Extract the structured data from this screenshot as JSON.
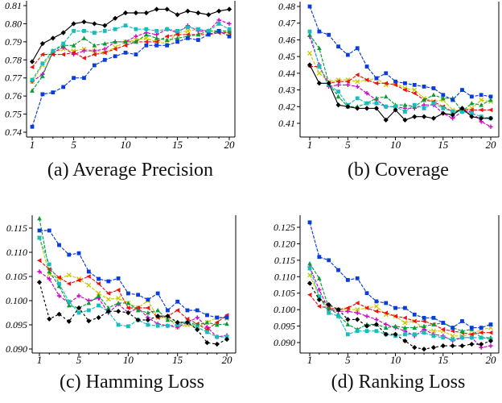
{
  "figure": {
    "background": "#ffffff",
    "axis_color": "#000000",
    "tick_label_color": "#000000"
  },
  "chart_data": [
    {
      "id": "a",
      "type": "line",
      "title": "(a) Average Precision",
      "xlabel": "",
      "ylabel": "",
      "grid": false,
      "legend": "none",
      "x": [
        1,
        2,
        3,
        4,
        5,
        6,
        7,
        8,
        9,
        10,
        11,
        12,
        13,
        14,
        15,
        16,
        17,
        18,
        19,
        20
      ],
      "xticks": [
        1,
        5,
        10,
        15,
        20
      ],
      "yticks": [
        "0.74",
        "0.75",
        "0.76",
        "0.77",
        "0.78",
        "0.79",
        "0.80",
        "0.81"
      ],
      "ylim": [
        0.74,
        0.81
      ],
      "series": [
        {
          "name": "olive",
          "color": "#c9c900",
          "marker": "x",
          "dash": "4 1.6",
          "values": [
            0.768,
            0.777,
            0.784,
            0.786,
            0.785,
            0.786,
            0.785,
            0.784,
            0.787,
            0.79,
            0.791,
            0.792,
            0.79,
            0.789,
            0.795,
            0.796,
            0.797,
            0.796,
            0.796,
            0.795
          ]
        },
        {
          "name": "magenta",
          "color": "#cf00cf",
          "marker": "plus",
          "dash": "4 1.6",
          "values": [
            0.768,
            0.772,
            0.784,
            0.787,
            0.783,
            0.785,
            0.785,
            0.786,
            0.79,
            0.79,
            0.793,
            0.795,
            0.794,
            0.797,
            0.795,
            0.799,
            0.796,
            0.796,
            0.802,
            0.8
          ]
        },
        {
          "name": "red",
          "color": "#ee1111",
          "marker": "tri-left",
          "dash": "4 1.6",
          "values": [
            0.776,
            0.783,
            0.783,
            0.783,
            0.784,
            0.781,
            0.783,
            0.784,
            0.786,
            0.788,
            0.79,
            0.79,
            0.79,
            0.793,
            0.794,
            0.794,
            0.794,
            0.794,
            0.795,
            0.795
          ]
        },
        {
          "name": "green",
          "color": "#0b9a38",
          "marker": "tri-up",
          "dash": "4 1.6",
          "values": [
            0.763,
            0.771,
            0.785,
            0.788,
            0.788,
            0.792,
            0.788,
            0.789,
            0.79,
            0.79,
            0.79,
            0.794,
            0.792,
            0.791,
            0.792,
            0.793,
            0.794,
            0.796,
            0.796,
            0.796
          ]
        },
        {
          "name": "cyan",
          "color": "#17bdbd",
          "marker": "square",
          "dash": "4 1.6",
          "values": [
            0.769,
            0.778,
            0.785,
            0.789,
            0.796,
            0.796,
            0.795,
            0.796,
            0.797,
            0.799,
            0.797,
            0.797,
            0.796,
            0.797,
            0.796,
            0.798,
            0.797,
            0.796,
            0.8,
            0.797
          ]
        },
        {
          "name": "blue",
          "color": "#0a3cd9",
          "marker": "square",
          "dash": "4 1.6",
          "values": [
            0.743,
            0.761,
            0.762,
            0.765,
            0.77,
            0.77,
            0.777,
            0.78,
            0.782,
            0.784,
            0.783,
            0.788,
            0.788,
            0.788,
            0.79,
            0.792,
            0.791,
            0.794,
            0.796,
            0.793
          ]
        },
        {
          "name": "black",
          "color": "#000000",
          "marker": "diamond",
          "dash": "",
          "values": [
            0.779,
            0.789,
            0.792,
            0.795,
            0.8,
            0.801,
            0.8,
            0.799,
            0.803,
            0.806,
            0.806,
            0.806,
            0.808,
            0.808,
            0.805,
            0.807,
            0.806,
            0.805,
            0.807,
            0.808
          ]
        }
      ]
    },
    {
      "id": "b",
      "type": "line",
      "title": "(b) Coverage",
      "xlabel": "",
      "ylabel": "",
      "grid": false,
      "legend": "none",
      "x": [
        1,
        2,
        3,
        4,
        5,
        6,
        7,
        8,
        9,
        10,
        11,
        12,
        13,
        14,
        15,
        16,
        17,
        18,
        19,
        20
      ],
      "xticks": [
        1,
        5,
        10,
        15,
        20
      ],
      "yticks": [
        "0.41",
        "0.42",
        "0.43",
        "0.44",
        "0.45",
        "0.46",
        "0.47",
        "0.48"
      ],
      "ylim": [
        0.41,
        0.48
      ],
      "series": [
        {
          "name": "olive",
          "color": "#c9c900",
          "marker": "x",
          "dash": "4 1.6",
          "values": [
            0.452,
            0.44,
            0.435,
            0.436,
            0.436,
            0.435,
            0.436,
            0.437,
            0.433,
            0.434,
            0.431,
            0.43,
            0.425,
            0.423,
            0.424,
            0.418,
            0.418,
            0.419,
            0.424,
            0.423
          ]
        },
        {
          "name": "magenta",
          "color": "#cf00cf",
          "marker": "plus",
          "dash": "4 1.6",
          "values": [
            0.462,
            0.445,
            0.432,
            0.433,
            0.433,
            0.432,
            0.428,
            0.424,
            0.42,
            0.42,
            0.419,
            0.419,
            0.421,
            0.421,
            0.416,
            0.413,
            0.417,
            0.417,
            0.411,
            0.408
          ]
        },
        {
          "name": "red",
          "color": "#ee1111",
          "marker": "tri-left",
          "dash": "4 1.6",
          "values": [
            0.444,
            0.444,
            0.434,
            0.435,
            0.435,
            0.439,
            0.436,
            0.434,
            0.434,
            0.433,
            0.43,
            0.428,
            0.424,
            0.423,
            0.42,
            0.417,
            0.418,
            0.418,
            0.418,
            0.418
          ]
        },
        {
          "name": "green",
          "color": "#0b9a38",
          "marker": "tri-up",
          "dash": "4 1.6",
          "values": [
            0.463,
            0.455,
            0.434,
            0.426,
            0.42,
            0.42,
            0.422,
            0.425,
            0.426,
            0.421,
            0.421,
            0.42,
            0.424,
            0.427,
            0.425,
            0.425,
            0.417,
            0.422,
            0.421,
            0.424
          ]
        },
        {
          "name": "cyan",
          "color": "#17bdbd",
          "marker": "square",
          "dash": "4 1.6",
          "values": [
            0.465,
            0.444,
            0.433,
            0.429,
            0.421,
            0.425,
            0.422,
            0.422,
            0.42,
            0.42,
            0.417,
            0.421,
            0.419,
            0.422,
            0.419,
            0.417,
            0.417,
            0.416,
            0.414,
            0.413
          ]
        },
        {
          "name": "blue",
          "color": "#0a3cd9",
          "marker": "square",
          "dash": "4 1.6",
          "values": [
            0.48,
            0.465,
            0.463,
            0.456,
            0.451,
            0.455,
            0.444,
            0.437,
            0.44,
            0.435,
            0.434,
            0.433,
            0.432,
            0.431,
            0.427,
            0.424,
            0.43,
            0.426,
            0.427,
            0.426
          ]
        },
        {
          "name": "black",
          "color": "#000000",
          "marker": "diamond",
          "dash": "",
          "values": [
            0.445,
            0.434,
            0.434,
            0.421,
            0.42,
            0.419,
            0.419,
            0.419,
            0.412,
            0.418,
            0.412,
            0.414,
            0.414,
            0.413,
            0.416,
            0.415,
            0.419,
            0.414,
            0.413,
            0.413
          ]
        }
      ]
    },
    {
      "id": "c",
      "type": "line",
      "title": "(c) Hamming Loss",
      "xlabel": "",
      "ylabel": "",
      "grid": false,
      "legend": "none",
      "x": [
        1,
        2,
        3,
        4,
        5,
        6,
        7,
        8,
        9,
        10,
        11,
        12,
        13,
        14,
        15,
        16,
        17,
        18,
        19,
        20
      ],
      "xticks": [
        1,
        5,
        10,
        15,
        20
      ],
      "yticks": [
        "0.090",
        "0.095",
        "0.100",
        "0.105",
        "0.110",
        "0.115"
      ],
      "ylim": [
        0.09,
        0.115
      ],
      "series": [
        {
          "name": "olive",
          "color": "#c9c900",
          "marker": "x",
          "dash": "4 1.6",
          "values": [
            0.113,
            0.1055,
            0.1045,
            0.1053,
            0.1045,
            0.1032,
            0.1015,
            0.1003,
            0.1005,
            0.0995,
            0.0985,
            0.1,
            0.0965,
            0.0965,
            0.0945,
            0.095,
            0.0945,
            0.0955,
            0.0965,
            0.0963
          ]
        },
        {
          "name": "magenta",
          "color": "#cf00cf",
          "marker": "plus",
          "dash": "4 1.6",
          "values": [
            0.106,
            0.1045,
            0.101,
            0.0995,
            0.101,
            0.1,
            0.1005,
            0.0975,
            0.0993,
            0.0975,
            0.0985,
            0.0965,
            0.0952,
            0.0948,
            0.0945,
            0.0955,
            0.0965,
            0.0945,
            0.0925,
            0.0928
          ]
        },
        {
          "name": "red",
          "color": "#ee1111",
          "marker": "tri-left",
          "dash": "4 1.6",
          "values": [
            0.1083,
            0.1065,
            0.1048,
            0.1035,
            0.1042,
            0.105,
            0.1035,
            0.1015,
            0.1022,
            0.0985,
            0.0985,
            0.0985,
            0.0965,
            0.0968,
            0.098,
            0.0962,
            0.0952,
            0.094,
            0.0955,
            0.097
          ]
        },
        {
          "name": "green",
          "color": "#0b9a38",
          "marker": "tri-up",
          "dash": "4 1.6",
          "values": [
            0.117,
            0.106,
            0.103,
            0.099,
            0.0985,
            0.0995,
            0.101,
            0.0985,
            0.0995,
            0.0995,
            0.098,
            0.0975,
            0.098,
            0.096,
            0.0955,
            0.0955,
            0.095,
            0.0955,
            0.095,
            0.0952
          ]
        },
        {
          "name": "cyan",
          "color": "#17bdbd",
          "marker": "square",
          "dash": "4 1.6",
          "values": [
            0.113,
            0.1075,
            0.1035,
            0.0998,
            0.0975,
            0.098,
            0.099,
            0.0977,
            0.095,
            0.0947,
            0.096,
            0.095,
            0.0948,
            0.0948,
            0.095,
            0.0955,
            0.0945,
            0.0935,
            0.0925,
            0.0925
          ]
        },
        {
          "name": "blue",
          "color": "#0a3cd9",
          "marker": "square",
          "dash": "4 1.6",
          "values": [
            0.1145,
            0.1145,
            0.1115,
            0.1095,
            0.1098,
            0.106,
            0.1045,
            0.104,
            0.1046,
            0.1015,
            0.1012,
            0.1002,
            0.1015,
            0.098,
            0.0998,
            0.098,
            0.098,
            0.097,
            0.0965,
            0.0965
          ]
        },
        {
          "name": "black",
          "color": "#000000",
          "marker": "diamond",
          "dash": "3 2.6",
          "values": [
            0.1038,
            0.0962,
            0.0972,
            0.0957,
            0.0985,
            0.0958,
            0.0965,
            0.0978,
            0.0978,
            0.0975,
            0.096,
            0.096,
            0.0968,
            0.0968,
            0.0955,
            0.0955,
            0.094,
            0.0913,
            0.091,
            0.092
          ]
        }
      ]
    },
    {
      "id": "d",
      "type": "line",
      "title": "(d) Ranking Loss",
      "xlabel": "",
      "ylabel": "",
      "grid": false,
      "legend": "none",
      "x": [
        1,
        2,
        3,
        4,
        5,
        6,
        7,
        8,
        9,
        10,
        11,
        12,
        13,
        14,
        15,
        16,
        17,
        18,
        19,
        20
      ],
      "xticks": [
        1,
        5,
        10,
        15,
        20
      ],
      "yticks": [
        "0.090",
        "0.095",
        "0.100",
        "0.105",
        "0.110",
        "0.115",
        "0.120",
        "0.125"
      ],
      "ylim": [
        0.09,
        0.125
      ],
      "series": [
        {
          "name": "olive",
          "color": "#c9c900",
          "marker": "x",
          "dash": "4 1.6",
          "values": [
            0.1105,
            0.104,
            0.1,
            0.1,
            0.1,
            0.1,
            0.1005,
            0.101,
            0.0985,
            0.098,
            0.096,
            0.0965,
            0.094,
            0.0935,
            0.0935,
            0.092,
            0.092,
            0.0925,
            0.094,
            0.0945
          ]
        },
        {
          "name": "magenta",
          "color": "#cf00cf",
          "marker": "plus",
          "dash": "4 1.6",
          "values": [
            0.113,
            0.106,
            0.1,
            0.0995,
            0.0995,
            0.099,
            0.098,
            0.097,
            0.0955,
            0.0945,
            0.0935,
            0.092,
            0.094,
            0.0925,
            0.092,
            0.0905,
            0.0915,
            0.0915,
            0.0885,
            0.089
          ]
        },
        {
          "name": "red",
          "color": "#ee1111",
          "marker": "tri-left",
          "dash": "4 1.6",
          "values": [
            0.1045,
            0.101,
            0.1005,
            0.1,
            0.1005,
            0.102,
            0.1005,
            0.0995,
            0.099,
            0.098,
            0.0975,
            0.0965,
            0.0965,
            0.0955,
            0.094,
            0.0935,
            0.093,
            0.0925,
            0.093,
            0.093
          ]
        },
        {
          "name": "green",
          "color": "#0b9a38",
          "marker": "tri-up",
          "dash": "4 1.6",
          "values": [
            0.114,
            0.1095,
            0.1005,
            0.0985,
            0.0955,
            0.094,
            0.0955,
            0.0955,
            0.0945,
            0.095,
            0.0945,
            0.0945,
            0.095,
            0.0955,
            0.096,
            0.0945,
            0.0935,
            0.094,
            0.0915,
            0.0915
          ]
        },
        {
          "name": "cyan",
          "color": "#17bdbd",
          "marker": "square",
          "dash": "4 1.6",
          "values": [
            0.1125,
            0.104,
            0.099,
            0.098,
            0.0925,
            0.0935,
            0.0935,
            0.0935,
            0.0925,
            0.092,
            0.0925,
            0.0925,
            0.093,
            0.092,
            0.0915,
            0.091,
            0.0915,
            0.0915,
            0.0915,
            0.091
          ]
        },
        {
          "name": "blue",
          "color": "#0a3cd9",
          "marker": "square",
          "dash": "4 1.6",
          "values": [
            0.1265,
            0.116,
            0.115,
            0.112,
            0.109,
            0.1095,
            0.105,
            0.1025,
            0.102,
            0.1005,
            0.1005,
            0.0985,
            0.0975,
            0.0975,
            0.096,
            0.0945,
            0.0965,
            0.0945,
            0.0945,
            0.0955
          ]
        },
        {
          "name": "black",
          "color": "#000000",
          "marker": "diamond",
          "dash": "3 2.6",
          "values": [
            0.108,
            0.103,
            0.1015,
            0.1,
            0.097,
            0.097,
            0.095,
            0.0955,
            0.0925,
            0.0925,
            0.0905,
            0.0885,
            0.088,
            0.0885,
            0.089,
            0.089,
            0.089,
            0.0895,
            0.0895,
            0.0905
          ]
        }
      ]
    }
  ]
}
